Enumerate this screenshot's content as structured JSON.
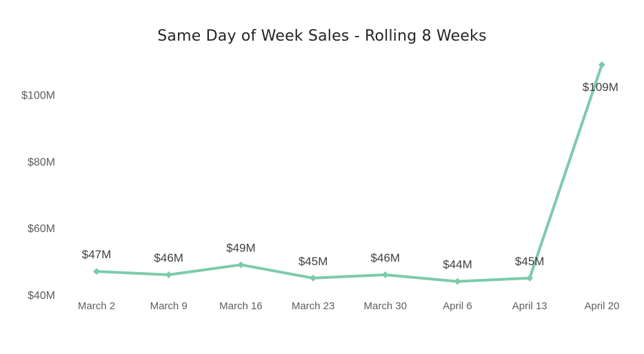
{
  "chart_data": {
    "type": "line",
    "title": "Same Day of Week Sales - Rolling 8 Weeks",
    "xlabel": "",
    "ylabel": "",
    "categories": [
      "March 2",
      "March 9",
      "March 16",
      "March 23",
      "March 30",
      "April 6",
      "April 13",
      "April 20"
    ],
    "values": [
      47,
      46,
      49,
      45,
      46,
      44,
      45,
      109
    ],
    "data_labels": [
      "$47M",
      "$46M",
      "$49M",
      "$45M",
      "$46M",
      "$44M",
      "$45M",
      "$109M"
    ],
    "yticks": [
      40,
      60,
      80,
      100
    ],
    "ytick_labels": [
      "$40M",
      "$60M",
      "$80M",
      "$100M"
    ],
    "ylim": [
      40,
      110
    ],
    "grid": false,
    "legend": "none",
    "line_color": "#7ccbaa"
  }
}
